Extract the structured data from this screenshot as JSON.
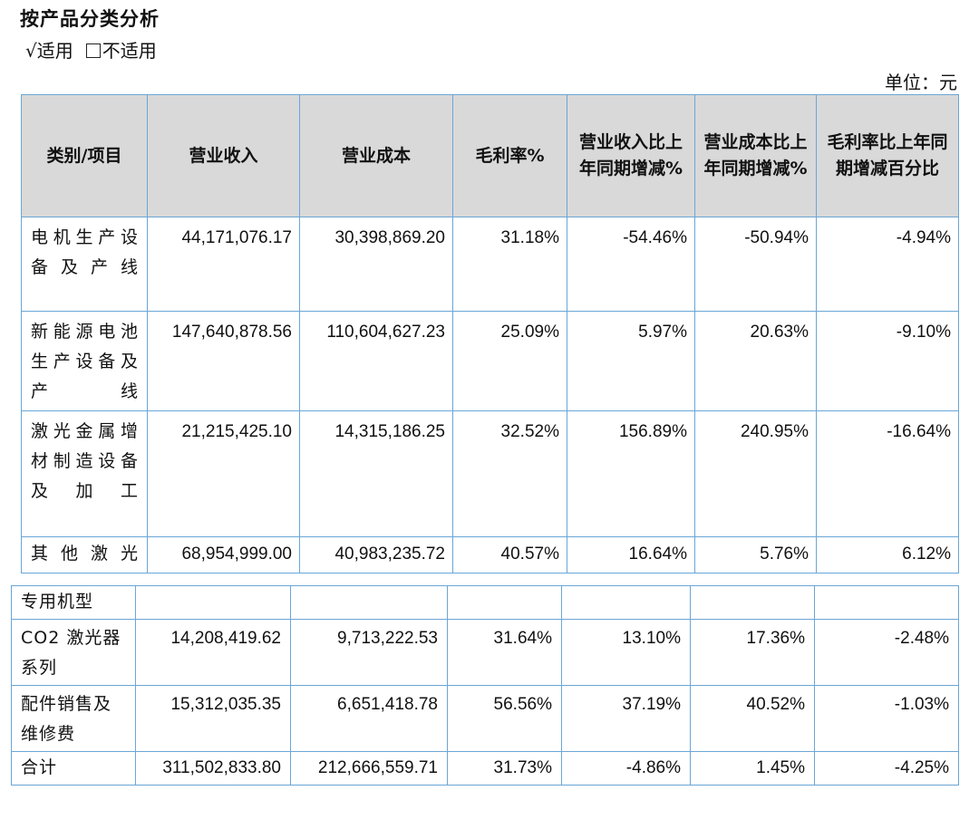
{
  "title": "按产品分类分析",
  "applicability": {
    "checked_option": "√适用",
    "unchecked_option": "不适用"
  },
  "unit": "单位：元",
  "headers": [
    "类别/项目",
    "营业收入",
    "营业成本",
    "毛利率%",
    "营业收入比上年同期增减%",
    "营业成本比上年同期增减%",
    "毛利率比上年同期增减百分比"
  ],
  "rows": [
    {
      "category": "电机生产设备及产线",
      "revenue": "44,171,076.17",
      "cost": "30,398,869.20",
      "gross_margin": "31.18%",
      "revenue_yoy": "-54.46%",
      "cost_yoy": "-50.94%",
      "margin_yoy": "-4.94%"
    },
    {
      "category": "新能源电池生产设备及产线",
      "revenue": "147,640,878.56",
      "cost": "110,604,627.23",
      "gross_margin": "25.09%",
      "revenue_yoy": "5.97%",
      "cost_yoy": "20.63%",
      "margin_yoy": "-9.10%"
    },
    {
      "category": "激光金属增材制造设备及加工",
      "revenue": "21,215,425.10",
      "cost": "14,315,186.25",
      "gross_margin": "32.52%",
      "revenue_yoy": "156.89%",
      "cost_yoy": "240.95%",
      "margin_yoy": "-16.64%"
    },
    {
      "category": "其他激光",
      "revenue": "68,954,999.00",
      "cost": "40,983,235.72",
      "gross_margin": "40.57%",
      "revenue_yoy": "16.64%",
      "cost_yoy": "5.76%",
      "margin_yoy": "6.12%"
    }
  ],
  "continued_rows": [
    {
      "category": "专用机型",
      "revenue": "",
      "cost": "",
      "gross_margin": "",
      "revenue_yoy": "",
      "cost_yoy": "",
      "margin_yoy": ""
    },
    {
      "category": "CO2 激光器系列",
      "revenue": "14,208,419.62",
      "cost": "9,713,222.53",
      "gross_margin": "31.64%",
      "revenue_yoy": "13.10%",
      "cost_yoy": "17.36%",
      "margin_yoy": "-2.48%"
    },
    {
      "category": "配件销售及维修费",
      "revenue": "15,312,035.35",
      "cost": "6,651,418.78",
      "gross_margin": "56.56%",
      "revenue_yoy": "37.19%",
      "cost_yoy": "40.52%",
      "margin_yoy": "-1.03%"
    },
    {
      "category": "合计",
      "revenue": "311,502,833.80",
      "cost": "212,666,559.71",
      "gross_margin": "31.73%",
      "revenue_yoy": "-4.86%",
      "cost_yoy": "1.45%",
      "margin_yoy": "-4.25%"
    }
  ]
}
